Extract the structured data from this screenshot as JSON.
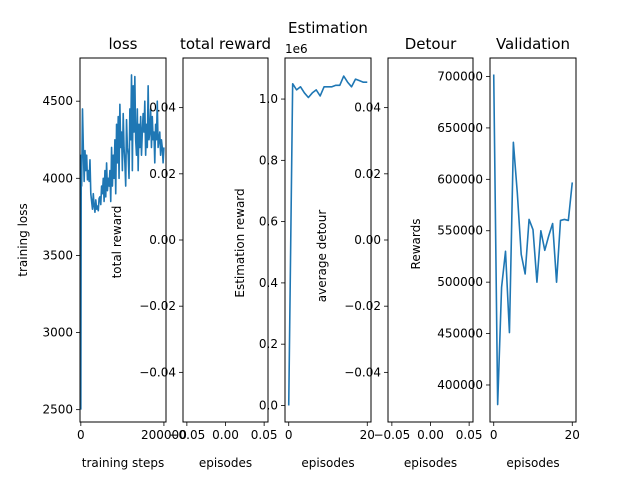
{
  "chart_data": [
    {
      "type": "line",
      "title": "loss",
      "xlabel": "training steps",
      "ylabel": "training loss",
      "xlim": [
        -2000,
        205000
      ],
      "ylim": [
        2420,
        4780
      ],
      "xticks": [
        {
          "v": 0,
          "label": "0"
        },
        {
          "v": 200000,
          "label": "200000"
        }
      ],
      "yticks": [
        {
          "v": 2500,
          "label": "2500"
        },
        {
          "v": 3000,
          "label": "3000"
        },
        {
          "v": 3500,
          "label": "3500"
        },
        {
          "v": 4000,
          "label": "4000"
        },
        {
          "v": 4500,
          "label": "4500"
        }
      ],
      "series": [
        {
          "x": [
            0,
            1000,
            2000,
            4000,
            6000,
            8000,
            10000,
            12000,
            14000,
            16000,
            18000,
            20000,
            22000,
            24000,
            26000,
            28000,
            30000,
            32000,
            34000,
            36000,
            38000,
            40000,
            42000,
            44000,
            46000,
            48000,
            50000,
            52000,
            54000,
            56000,
            58000,
            60000,
            62000,
            64000,
            66000,
            68000,
            70000,
            72000,
            74000,
            76000,
            78000,
            80000,
            82000,
            84000,
            86000,
            88000,
            90000,
            92000,
            94000,
            96000,
            98000,
            100000,
            102000,
            104000,
            106000,
            108000,
            110000,
            112000,
            114000,
            116000,
            118000,
            120000,
            122000,
            124000,
            126000,
            128000,
            130000,
            132000,
            134000,
            136000,
            138000,
            140000,
            142000,
            144000,
            146000,
            148000,
            150000,
            152000,
            154000,
            156000,
            158000,
            160000,
            162000,
            164000,
            166000,
            168000,
            170000,
            172000,
            174000,
            176000,
            178000,
            180000,
            182000,
            184000,
            186000,
            188000,
            190000,
            192000,
            194000,
            196000,
            198000,
            200000
          ],
          "y": [
            2500,
            4150,
            3950,
            4450,
            4200,
            3980,
            4180,
            4050,
            4150,
            3990,
            4050,
            3980,
            4120,
            3900,
            3850,
            3800,
            3900,
            3820,
            3780,
            3860,
            3800,
            3820,
            3790,
            3870,
            3880,
            3830,
            3950,
            3900,
            4000,
            3850,
            4050,
            3880,
            4100,
            3920,
            4000,
            3950,
            4050,
            3850,
            4200,
            3950,
            4150,
            4000,
            4250,
            3900,
            4350,
            4100,
            4400,
            4000,
            4480,
            4200,
            4300,
            4050,
            4420,
            4200,
            4100,
            3950,
            4380,
            4200,
            4150,
            4000,
            4450,
            4250,
            4670,
            4050,
            4600,
            4300,
            4660,
            4250,
            4150,
            4450,
            4050,
            4350,
            4200,
            4400,
            4150,
            4300,
            4420,
            4300,
            4500,
            4150,
            4350,
            4200,
            4600,
            4250,
            4300,
            4450,
            4200,
            4400,
            4250,
            4300,
            4100,
            4350,
            4250,
            4500,
            4200,
            4250,
            4300,
            4150,
            4250,
            4200,
            4100,
            4200
          ]
        }
      ]
    },
    {
      "type": "line",
      "title": "total reward",
      "xlabel": "episodes",
      "ylabel": "total reward",
      "xlim": [
        -0.055,
        0.055
      ],
      "ylim": [
        -0.055,
        0.055
      ],
      "xticks": [
        {
          "v": -0.05,
          "label": "−0.05"
        },
        {
          "v": 0,
          "label": "0.00"
        },
        {
          "v": 0.05,
          "label": "0.05"
        }
      ],
      "yticks": [
        {
          "v": -0.04,
          "label": "−0.04"
        },
        {
          "v": -0.02,
          "label": "−0.02"
        },
        {
          "v": 0,
          "label": "0.00"
        },
        {
          "v": 0.02,
          "label": "0.02"
        },
        {
          "v": 0.04,
          "label": "0.04"
        }
      ],
      "series": []
    },
    {
      "type": "line",
      "title": "Estimation",
      "offset_text": "1e6",
      "xlabel": "episodes",
      "ylabel": "Estimation reward",
      "xlim": [
        -0.95,
        20.95
      ],
      "ylim": [
        -0.054,
        1.134
      ],
      "xticks": [
        {
          "v": 0,
          "label": "0"
        },
        {
          "v": 20,
          "label": "20"
        }
      ],
      "yticks": [
        {
          "v": 0,
          "label": "0.0"
        },
        {
          "v": 0.2,
          "label": "0.2"
        },
        {
          "v": 0.4,
          "label": "0.4"
        },
        {
          "v": 0.6,
          "label": "0.6"
        },
        {
          "v": 0.8,
          "label": "0.8"
        },
        {
          "v": 1.0,
          "label": "1.0"
        }
      ],
      "series": [
        {
          "x": [
            0,
            1,
            2,
            3,
            4,
            5,
            6,
            7,
            8,
            9,
            10,
            11,
            12,
            13,
            14,
            15,
            16,
            17,
            18,
            19,
            20
          ],
          "y": [
            0.0,
            1.05,
            1.03,
            1.04,
            1.02,
            1.005,
            1.02,
            1.03,
            1.01,
            1.04,
            1.04,
            1.04,
            1.045,
            1.045,
            1.075,
            1.055,
            1.04,
            1.065,
            1.06,
            1.055,
            1.055
          ]
        }
      ]
    },
    {
      "type": "line",
      "title": "Detour",
      "xlabel": "episodes",
      "ylabel": "average detour",
      "xlim": [
        -0.055,
        0.055
      ],
      "ylim": [
        -0.055,
        0.055
      ],
      "xticks": [
        {
          "v": -0.05,
          "label": "−0.05"
        },
        {
          "v": 0,
          "label": "0.00"
        },
        {
          "v": 0.05,
          "label": "0.05"
        }
      ],
      "yticks": [
        {
          "v": -0.04,
          "label": "−0.04"
        },
        {
          "v": -0.02,
          "label": "−0.02"
        },
        {
          "v": 0,
          "label": "0.00"
        },
        {
          "v": 0.02,
          "label": "0.02"
        },
        {
          "v": 0.04,
          "label": "0.04"
        }
      ],
      "series": []
    },
    {
      "type": "line",
      "title": "Validation",
      "xlabel": "episodes",
      "ylabel": "Rewards",
      "xlim": [
        -0.95,
        20.95
      ],
      "ylim": [
        364000,
        718000
      ],
      "xticks": [
        {
          "v": 0,
          "label": "0"
        },
        {
          "v": 20,
          "label": "20"
        }
      ],
      "yticks": [
        {
          "v": 400000,
          "label": "400000"
        },
        {
          "v": 450000,
          "label": "450000"
        },
        {
          "v": 500000,
          "label": "500000"
        },
        {
          "v": 550000,
          "label": "550000"
        },
        {
          "v": 600000,
          "label": "600000"
        },
        {
          "v": 650000,
          "label": "650000"
        },
        {
          "v": 700000,
          "label": "700000"
        }
      ],
      "series": [
        {
          "x": [
            0,
            1,
            2,
            3,
            4,
            5,
            6,
            7,
            8,
            9,
            10,
            11,
            12,
            13,
            14,
            15,
            16,
            17,
            18,
            19,
            20
          ],
          "y": [
            702000,
            381000,
            495000,
            530000,
            451000,
            636000,
            587000,
            527000,
            508000,
            561000,
            551000,
            500000,
            550000,
            531000,
            545000,
            557000,
            500000,
            560000,
            561000,
            560000,
            597000
          ]
        }
      ]
    }
  ]
}
